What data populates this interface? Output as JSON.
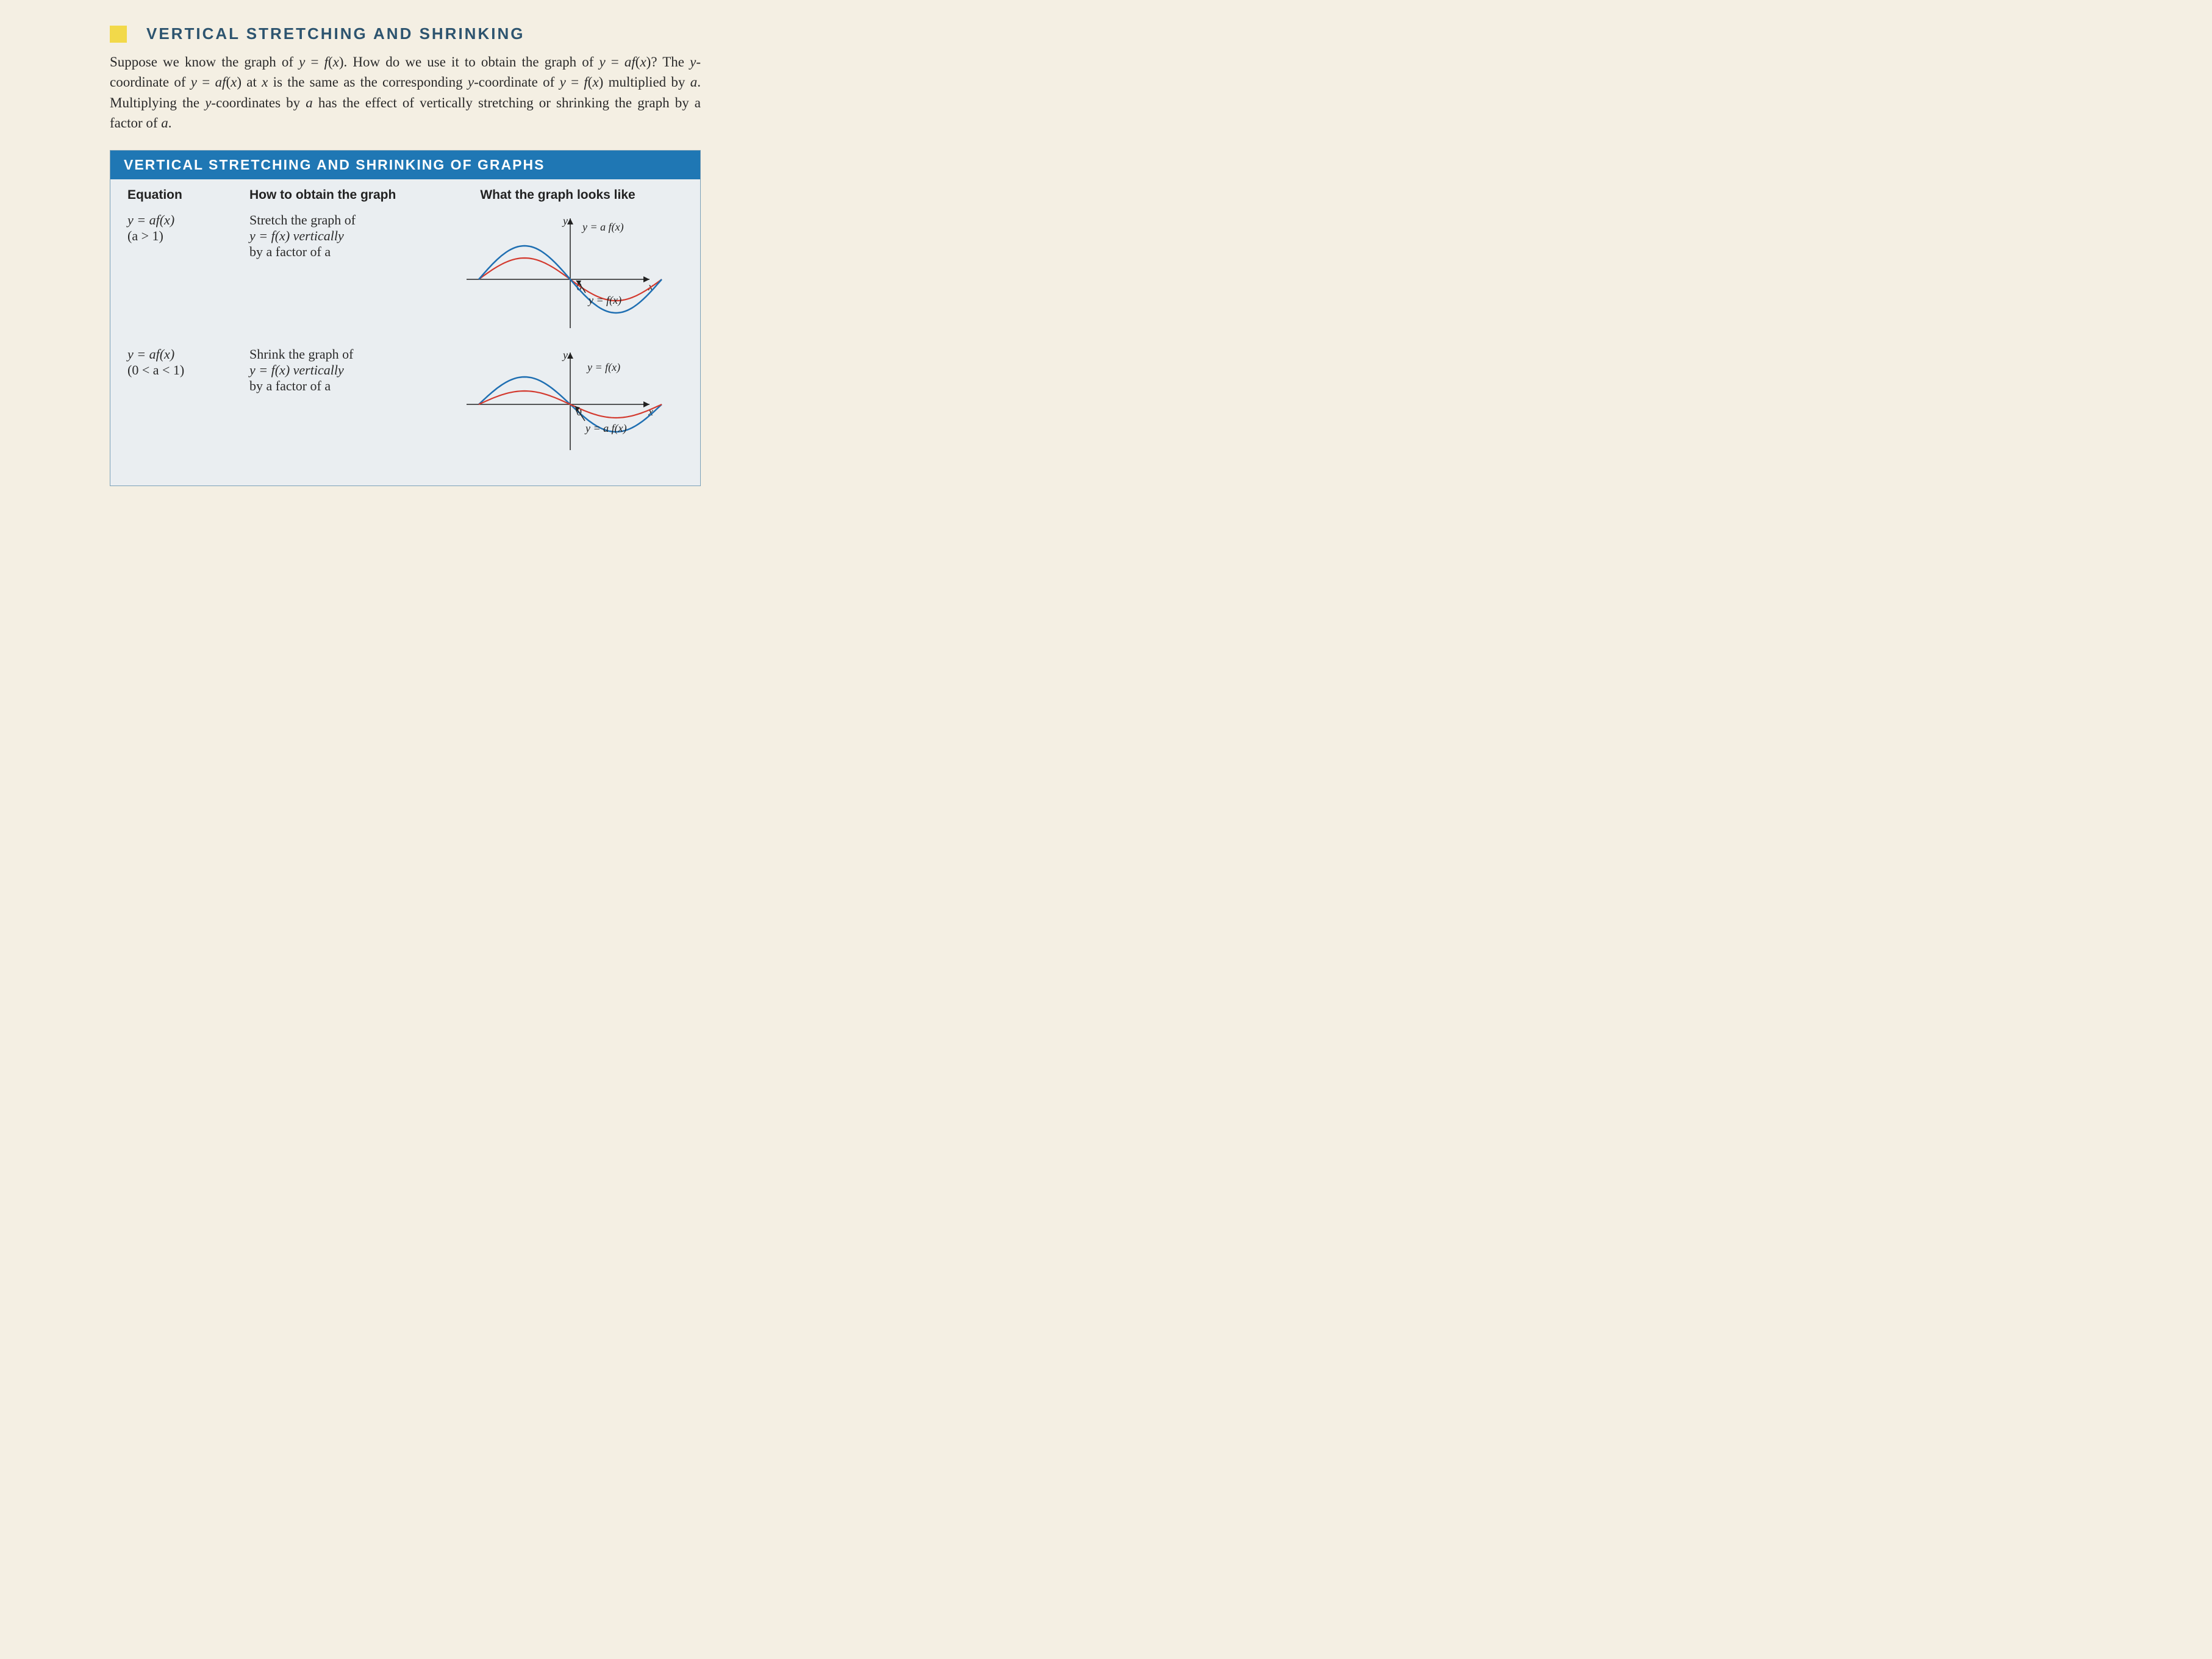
{
  "title": "VERTICAL STRETCHING AND SHRINKING",
  "body": "Suppose we know the graph of y = f(x). How do we use it to obtain the graph of y = af(x)? The y-coordinate of y = af(x) at x is the same as the corresponding y-coordinate of y = f(x) multiplied by a. Multiplying the y-coordinates by a has the effect of vertically stretching or shrinking the graph by a factor of a.",
  "box": {
    "header": "VERTICAL STRETCHING AND SHRINKING OF GRAPHS",
    "col1": "Equation",
    "col2": "How to obtain the graph",
    "col3": "What the graph looks like",
    "rows": [
      {
        "eqn": "y = af(x)",
        "cond": "(a > 1)",
        "how1": "Stretch the graph of",
        "how2": "y = f(x) vertically",
        "how3": "by a factor of a",
        "plot": {
          "base_amp": 35,
          "scaled_amp": 55,
          "top_label": "y = a f(x)",
          "bottom_label": "y = f(x)",
          "colors": {
            "base": "#d33a2f",
            "scaled": "#1f6fb2"
          },
          "base_class": "curve-red",
          "scaled_class": "curve-blue"
        }
      },
      {
        "eqn": "y = af(x)",
        "cond": "(0 < a < 1)",
        "how1": "Shrink the graph of",
        "how2": "y = f(x) vertically",
        "how3": "by a factor of a",
        "plot": {
          "base_amp": 45,
          "scaled_amp": 22,
          "top_label": "y = f(x)",
          "bottom_label": "y = a f(x)",
          "colors": {
            "base": "#1f6fb2",
            "scaled": "#d33a2f"
          },
          "base_class": "curve-blue",
          "scaled_class": "curve-red"
        }
      }
    ],
    "axis_labels": {
      "x": "x",
      "y": "y",
      "origin": "0"
    },
    "background": "#eaeef1",
    "header_bg": "#1f77b4",
    "curve_blue": "#1f6fb2",
    "curve_red": "#d33a2f"
  }
}
